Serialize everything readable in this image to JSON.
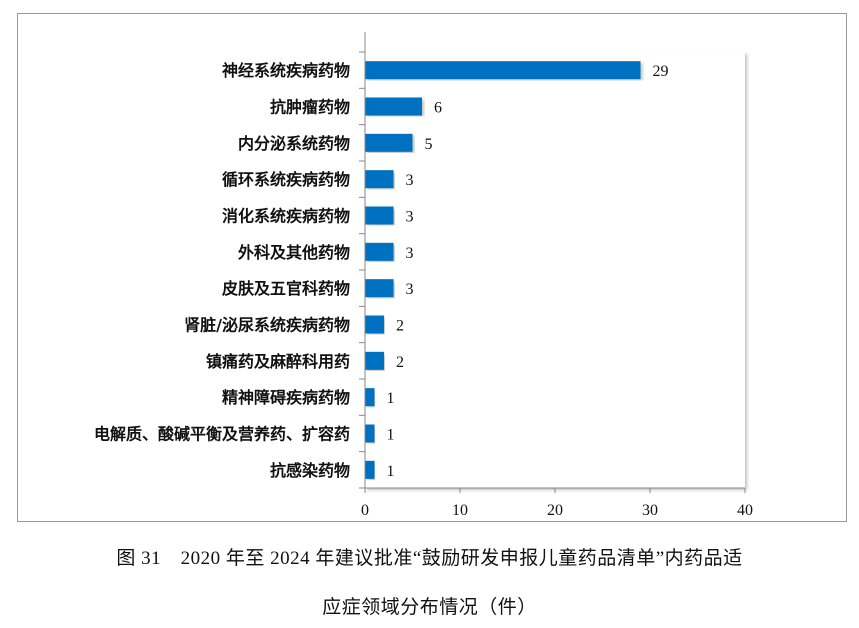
{
  "chart_data": {
    "type": "bar",
    "orientation": "horizontal",
    "categories": [
      "神经系统疾病药物",
      "抗肿瘤药物",
      "内分泌系统药物",
      "循环系统疾病药物",
      "消化系统疾病药物",
      "外科及其他药物",
      "皮肤及五官科药物",
      "肾脏/泌尿系统疾病药物",
      "镇痛药及麻醉科用药",
      "精神障碍疾病药物",
      "电解质、酸碱平衡及营养药、扩容药",
      "抗感染药物"
    ],
    "values": [
      29,
      6,
      5,
      3,
      3,
      3,
      3,
      2,
      2,
      1,
      1,
      1
    ],
    "xlim": [
      0,
      40
    ],
    "xticks": [
      "0",
      "10",
      "20",
      "30",
      "40"
    ],
    "grid": false,
    "legend": "none",
    "bar_color": "#0070C0"
  },
  "caption": {
    "line1": "图 31　2020 年至 2024 年建议批准“鼓励研发申报儿童药品清单”内药品适",
    "line2": "应症领域分布情况（件）"
  }
}
